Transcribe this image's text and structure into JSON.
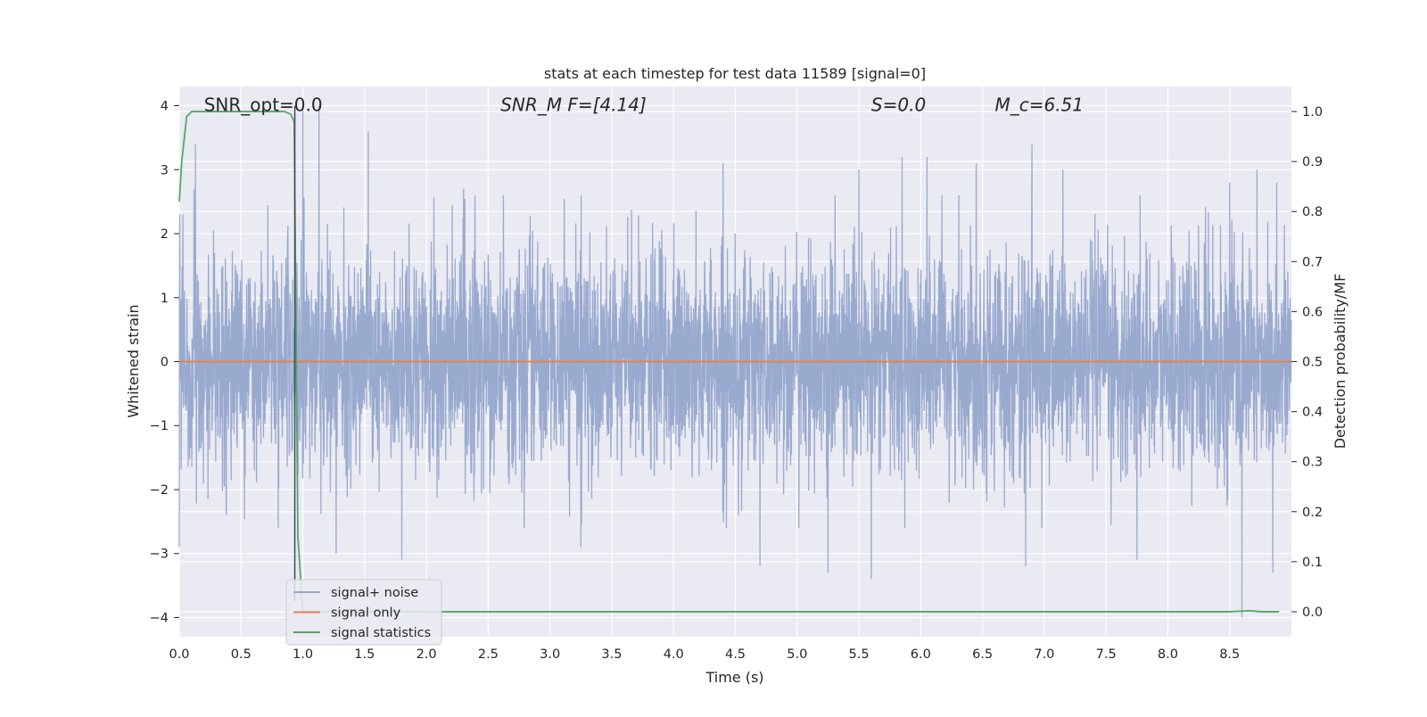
{
  "chart_data": {
    "type": "line",
    "title": "stats at each timestep for test data 11589 [signal=0]",
    "xlabel": "Time (s)",
    "ylabel": "Whitened strain",
    "y2label": "Detection probability/MF",
    "xlim": [
      0.0,
      9.0
    ],
    "ylim": [
      -4.3,
      4.3
    ],
    "y2lim": [
      -0.05,
      1.05
    ],
    "x_ticks": [
      "0.0",
      "0.5",
      "1.0",
      "1.5",
      "2.0",
      "2.5",
      "3.0",
      "3.5",
      "4.0",
      "4.5",
      "5.0",
      "5.5",
      "6.0",
      "6.5",
      "7.0",
      "7.5",
      "8.0",
      "8.5"
    ],
    "y_ticks": [
      "−4",
      "−3",
      "−2",
      "−1",
      "0",
      "1",
      "2",
      "3",
      "4"
    ],
    "y2_ticks": [
      "0.0",
      "0.1",
      "0.2",
      "0.3",
      "0.4",
      "0.5",
      "0.6",
      "0.7",
      "0.8",
      "0.9",
      "1.0"
    ],
    "grid": true,
    "legend_position": "lower-left",
    "annotations": [
      {
        "text": "SNR_opt=0.0",
        "x": 0.2,
        "y": 4.0,
        "italic": false
      },
      {
        "text": "SNR_M F=[4.14]",
        "x": 2.6,
        "y": 4.0,
        "italic": true
      },
      {
        "text": "S=0.0",
        "x": 5.6,
        "y": 4.0,
        "italic": true
      },
      {
        "text": "M_c=6.51",
        "x": 6.6,
        "y": 4.0,
        "italic": true
      }
    ],
    "series": [
      {
        "name": "signal+ noise",
        "color": "#99aacf",
        "axis": "left",
        "kind": "noise",
        "sample_rate": 512,
        "envelope_typical": [
          -1.5,
          1.5
        ],
        "extremes": [
          {
            "x": 0.0,
            "y": -2.9
          },
          {
            "x": 0.03,
            "y": 2.3
          },
          {
            "x": 0.12,
            "y": 2.7
          },
          {
            "x": 0.13,
            "y": 3.4
          },
          {
            "x": 0.38,
            "y": -2.4
          },
          {
            "x": 0.8,
            "y": -2.6
          },
          {
            "x": 1.0,
            "y": 4.0
          },
          {
            "x": 1.13,
            "y": 4.0
          },
          {
            "x": 1.27,
            "y": -3.0
          },
          {
            "x": 1.53,
            "y": 3.6
          },
          {
            "x": 1.8,
            "y": -3.1
          },
          {
            "x": 2.3,
            "y": 2.7
          },
          {
            "x": 3.25,
            "y": -2.9
          },
          {
            "x": 4.4,
            "y": 3.1
          },
          {
            "x": 4.7,
            "y": -3.2
          },
          {
            "x": 5.25,
            "y": -3.3
          },
          {
            "x": 5.5,
            "y": 3.0
          },
          {
            "x": 5.6,
            "y": -3.4
          },
          {
            "x": 5.85,
            "y": 3.2
          },
          {
            "x": 6.05,
            "y": 3.2
          },
          {
            "x": 6.45,
            "y": 3.1
          },
          {
            "x": 6.85,
            "y": -3.2
          },
          {
            "x": 6.9,
            "y": 3.4
          },
          {
            "x": 7.15,
            "y": 3.0
          },
          {
            "x": 7.75,
            "y": -3.1
          },
          {
            "x": 8.5,
            "y": 2.8
          },
          {
            "x": 8.6,
            "y": -4.0
          },
          {
            "x": 8.72,
            "y": 3.0
          },
          {
            "x": 8.85,
            "y": -3.3
          },
          {
            "x": 8.88,
            "y": 2.8
          }
        ]
      },
      {
        "name": "signal only",
        "color": "#dd8452",
        "axis": "left",
        "x": [
          0.0,
          9.0
        ],
        "y": [
          0.0,
          0.0
        ]
      },
      {
        "name": "signal statistics",
        "color": "#55a868",
        "axis": "right",
        "x": [
          0.0,
          0.02,
          0.06,
          0.1,
          0.5,
          0.85,
          0.9,
          0.93,
          0.96,
          1.0,
          1.5,
          3.0,
          5.0,
          7.0,
          8.5,
          8.66,
          8.75,
          8.9
        ],
        "y": [
          0.82,
          0.9,
          0.99,
          1.0,
          1.0,
          1.0,
          0.995,
          0.98,
          0.15,
          0.0,
          0.0,
          0.0,
          0.0,
          0.0,
          0.0,
          0.002,
          0.0,
          0.0
        ]
      }
    ]
  }
}
